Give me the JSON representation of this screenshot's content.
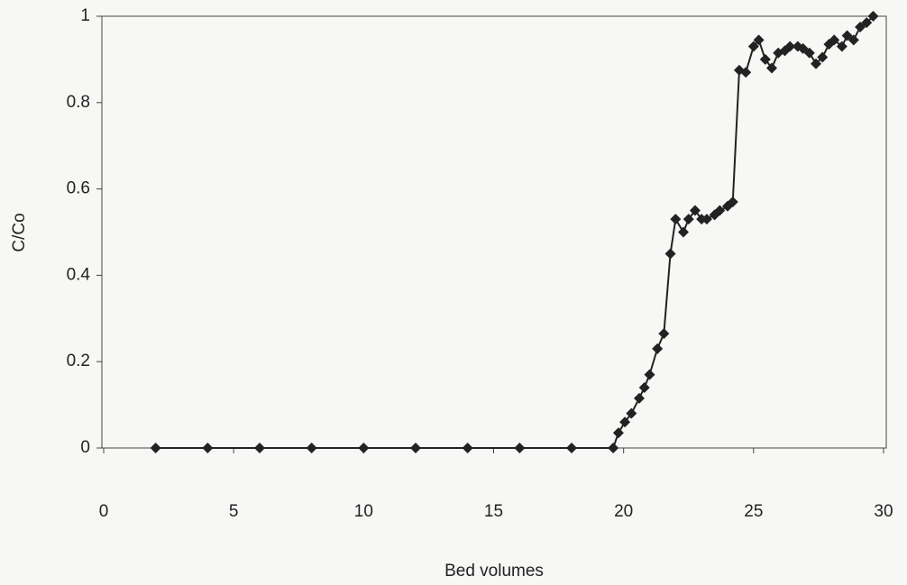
{
  "chart_data": {
    "type": "line",
    "xlabel": "Bed volumes",
    "ylabel": "C/Co",
    "xlim": [
      0,
      30
    ],
    "xticks": [
      0,
      5,
      10,
      15,
      20,
      25,
      30
    ],
    "ylim": [
      0,
      1
    ],
    "yticks": [
      0,
      0.2,
      0.4,
      0.6,
      0.8,
      1
    ],
    "grid": false,
    "marker": "diamond",
    "series": [
      {
        "color": "#222222",
        "x": [
          2,
          4,
          6,
          8,
          10,
          12,
          14,
          16,
          18,
          19.6,
          19.8,
          20.05,
          20.3,
          20.6,
          20.8,
          21.0,
          21.3,
          21.55,
          21.8,
          22.0,
          22.3,
          22.5,
          22.75,
          23.0,
          23.2,
          23.5,
          23.7,
          24.0,
          24.2,
          24.45,
          24.7,
          25.0,
          25.2,
          25.45,
          25.7,
          25.95,
          26.2,
          26.4,
          26.7,
          26.9,
          27.15,
          27.4,
          27.65,
          27.9,
          28.1,
          28.4,
          28.6,
          28.85,
          29.1,
          29.35,
          29.6
        ],
        "values": [
          0,
          0,
          0,
          0,
          0,
          0,
          0,
          0,
          0,
          0,
          0.035,
          0.06,
          0.08,
          0.115,
          0.14,
          0.17,
          0.23,
          0.265,
          0.45,
          0.53,
          0.5,
          0.53,
          0.55,
          0.53,
          0.53,
          0.54,
          0.55,
          0.56,
          0.57,
          0.875,
          0.87,
          0.93,
          0.945,
          0.9,
          0.88,
          0.915,
          0.92,
          0.93,
          0.93,
          0.925,
          0.915,
          0.89,
          0.905,
          0.935,
          0.945,
          0.93,
          0.955,
          0.945,
          0.975,
          0.985,
          1.0
        ]
      }
    ]
  }
}
